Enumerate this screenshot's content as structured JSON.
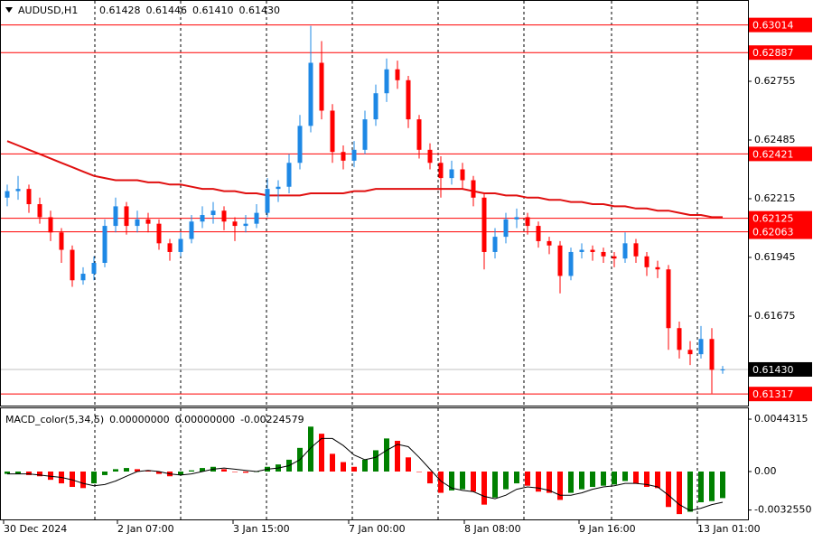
{
  "chart_data": {
    "type": "candlestick",
    "symbol": "AUDUSD,H1",
    "header_values": [
      "0.61428",
      "0.61446",
      "0.61410",
      "0.61430"
    ],
    "up_color": "#1e88e5",
    "down_color": "#ff0000",
    "ylim": [
      0.61272,
      0.63108
    ],
    "yticks": [
      0.62755,
      0.62485,
      0.62215,
      0.61945,
      0.61675
    ],
    "levels": {
      "color": "#ff0000",
      "values": [
        0.63014,
        0.62887,
        0.62421,
        0.62125,
        0.62063,
        0.61317
      ]
    },
    "current_price": {
      "value": 0.6143,
      "label": "0.61430"
    },
    "ohlc": [
      [
        0.6222,
        0.6228,
        0.6218,
        0.6225
      ],
      [
        0.6225,
        0.6232,
        0.6221,
        0.6226
      ],
      [
        0.6226,
        0.6228,
        0.6215,
        0.6219
      ],
      [
        0.6219,
        0.6222,
        0.621,
        0.6213
      ],
      [
        0.6213,
        0.6216,
        0.6202,
        0.6206
      ],
      [
        0.6206,
        0.6208,
        0.6192,
        0.6198
      ],
      [
        0.6198,
        0.62,
        0.6181,
        0.6184
      ],
      [
        0.6184,
        0.619,
        0.6182,
        0.6187
      ],
      [
        0.6187,
        0.6195,
        0.6184,
        0.6192
      ],
      [
        0.6192,
        0.6212,
        0.619,
        0.6209
      ],
      [
        0.6209,
        0.6222,
        0.6206,
        0.6218
      ],
      [
        0.6218,
        0.622,
        0.6205,
        0.6209
      ],
      [
        0.6209,
        0.6216,
        0.6206,
        0.6212
      ],
      [
        0.6212,
        0.6215,
        0.6206,
        0.621
      ],
      [
        0.621,
        0.6212,
        0.6198,
        0.6201
      ],
      [
        0.6201,
        0.6203,
        0.6193,
        0.6197
      ],
      [
        0.6197,
        0.6206,
        0.6195,
        0.6203
      ],
      [
        0.6203,
        0.6214,
        0.6201,
        0.6211
      ],
      [
        0.6211,
        0.6218,
        0.6208,
        0.6214
      ],
      [
        0.6214,
        0.622,
        0.621,
        0.6216
      ],
      [
        0.6216,
        0.6218,
        0.6207,
        0.6211
      ],
      [
        0.6211,
        0.6213,
        0.6202,
        0.6209
      ],
      [
        0.6209,
        0.6214,
        0.6206,
        0.621
      ],
      [
        0.621,
        0.6219,
        0.6208,
        0.6215
      ],
      [
        0.6215,
        0.6231,
        0.6213,
        0.6226
      ],
      [
        0.6226,
        0.623,
        0.622,
        0.6227
      ],
      [
        0.6227,
        0.6242,
        0.6224,
        0.6238
      ],
      [
        0.6238,
        0.626,
        0.6235,
        0.6255
      ],
      [
        0.6255,
        0.6301,
        0.6252,
        0.6284
      ],
      [
        0.6284,
        0.6294,
        0.6258,
        0.6262
      ],
      [
        0.6262,
        0.6265,
        0.6238,
        0.6243
      ],
      [
        0.6243,
        0.6246,
        0.6235,
        0.6239
      ],
      [
        0.6239,
        0.6248,
        0.6236,
        0.6244
      ],
      [
        0.6244,
        0.6262,
        0.6242,
        0.6258
      ],
      [
        0.6258,
        0.6274,
        0.6255,
        0.627
      ],
      [
        0.627,
        0.6286,
        0.6266,
        0.6281
      ],
      [
        0.6281,
        0.6285,
        0.6272,
        0.6276
      ],
      [
        0.6276,
        0.6278,
        0.6254,
        0.6258
      ],
      [
        0.6258,
        0.626,
        0.624,
        0.6244
      ],
      [
        0.6244,
        0.6247,
        0.6235,
        0.6238
      ],
      [
        0.6238,
        0.6241,
        0.6222,
        0.6231
      ],
      [
        0.6231,
        0.6239,
        0.6228,
        0.6235
      ],
      [
        0.6235,
        0.6238,
        0.6226,
        0.623
      ],
      [
        0.623,
        0.6232,
        0.6218,
        0.6222
      ],
      [
        0.6222,
        0.6224,
        0.6189,
        0.6197
      ],
      [
        0.6197,
        0.6208,
        0.6194,
        0.6204
      ],
      [
        0.6204,
        0.6215,
        0.6201,
        0.6212
      ],
      [
        0.6212,
        0.6217,
        0.6208,
        0.6213
      ],
      [
        0.6213,
        0.6215,
        0.6205,
        0.6209
      ],
      [
        0.6209,
        0.6211,
        0.6199,
        0.6202
      ],
      [
        0.6202,
        0.6204,
        0.6196,
        0.62
      ],
      [
        0.62,
        0.6202,
        0.6178,
        0.6186
      ],
      [
        0.6186,
        0.6199,
        0.6184,
        0.6197
      ],
      [
        0.6197,
        0.6201,
        0.6194,
        0.6198
      ],
      [
        0.6198,
        0.62,
        0.6193,
        0.6197
      ],
      [
        0.6197,
        0.6199,
        0.6192,
        0.6195
      ],
      [
        0.6195,
        0.6197,
        0.619,
        0.6194
      ],
      [
        0.6194,
        0.6206,
        0.6192,
        0.6201
      ],
      [
        0.6201,
        0.6203,
        0.6192,
        0.6195
      ],
      [
        0.6195,
        0.6197,
        0.6186,
        0.619
      ],
      [
        0.619,
        0.6193,
        0.6185,
        0.6189
      ],
      [
        0.6189,
        0.6191,
        0.6152,
        0.6162
      ],
      [
        0.6162,
        0.6165,
        0.6148,
        0.6152
      ],
      [
        0.6152,
        0.6156,
        0.6145,
        0.615
      ],
      [
        0.615,
        0.6163,
        0.6148,
        0.6157
      ],
      [
        0.6157,
        0.6162,
        0.6132,
        0.61428
      ],
      [
        0.61428,
        0.61446,
        0.6141,
        0.6143
      ]
    ],
    "ma": {
      "color": "#e01010",
      "values": [
        0.6248,
        0.6246,
        0.6244,
        0.6242,
        0.624,
        0.6238,
        0.6236,
        0.6234,
        0.6232,
        0.6231,
        0.623,
        0.623,
        0.623,
        0.6229,
        0.6229,
        0.6228,
        0.6228,
        0.6227,
        0.6226,
        0.6226,
        0.6225,
        0.6225,
        0.6224,
        0.6224,
        0.6223,
        0.6223,
        0.6223,
        0.6223,
        0.6224,
        0.6224,
        0.6224,
        0.6224,
        0.6225,
        0.6225,
        0.6226,
        0.6226,
        0.6226,
        0.6226,
        0.6226,
        0.6226,
        0.6226,
        0.6226,
        0.6226,
        0.6225,
        0.6224,
        0.6224,
        0.6223,
        0.6223,
        0.6222,
        0.6222,
        0.6221,
        0.6221,
        0.622,
        0.622,
        0.6219,
        0.6219,
        0.6218,
        0.6218,
        0.6217,
        0.6217,
        0.6216,
        0.6216,
        0.6215,
        0.6214,
        0.6214,
        0.6213,
        0.6213
      ]
    },
    "macd": {
      "label": "MACD_color(5,34,5)",
      "header_values": [
        "0.00000000",
        "0.00000000",
        "-0.00224579"
      ],
      "up_color": "#008000",
      "down_color": "#ff0000",
      "signal_color": "#000000",
      "ylim": [
        -0.00405,
        0.00535
      ],
      "yticks": [
        0.0044315,
        {
          "value": 0,
          "label": "0.00"
        },
        {
          "value": -0.003255,
          "label": "-0.0032550"
        }
      ],
      "values": [
        -0.0002,
        -0.0002,
        -0.0003,
        -0.0004,
        -0.0007,
        -0.001,
        -0.0013,
        -0.0014,
        -0.001,
        -0.0003,
        0.0002,
        0.0003,
        0.0002,
        0.0001,
        -0.0002,
        -0.0004,
        -0.0003,
        0.0001,
        0.0003,
        0.0004,
        0.0002,
        0,
        -0.0001,
        0,
        0.0004,
        0.0006,
        0.001,
        0.002,
        0.0038,
        0.0032,
        0.0015,
        0.0008,
        0.0004,
        0.001,
        0.0018,
        0.0028,
        0.0026,
        0.0012,
        0,
        -0.001,
        -0.0018,
        -0.0016,
        -0.0015,
        -0.0017,
        -0.0028,
        -0.0022,
        -0.0015,
        -0.001,
        -0.0012,
        -0.0017,
        -0.0018,
        -0.0024,
        -0.0018,
        -0.0015,
        -0.0013,
        -0.0012,
        -0.0011,
        -0.0008,
        -0.001,
        -0.0013,
        -0.0014,
        -0.003,
        -0.0036,
        -0.0034,
        -0.0026,
        -0.0025,
        -0.00224579
      ],
      "signal": [
        -0.0002,
        -0.0002,
        -0.0002,
        -0.0003,
        -0.0004,
        -0.0005,
        -0.0007,
        -0.001,
        -0.0012,
        -0.0011,
        -0.0008,
        -0.0004,
        0,
        0.0001,
        0,
        -0.0002,
        -0.0003,
        -0.0002,
        0,
        0.0002,
        0.0003,
        0.0002,
        0.0001,
        0,
        0.0002,
        0.0003,
        0.0005,
        0.001,
        0.002,
        0.0028,
        0.0028,
        0.0022,
        0.0014,
        0.001,
        0.0012,
        0.0018,
        0.0023,
        0.0021,
        0.0012,
        0.0002,
        -0.0008,
        -0.0014,
        -0.0016,
        -0.0017,
        -0.0021,
        -0.0023,
        -0.002,
        -0.0015,
        -0.0013,
        -0.0014,
        -0.0016,
        -0.002,
        -0.002,
        -0.0018,
        -0.0015,
        -0.0013,
        -0.0012,
        -0.001,
        -0.001,
        -0.0011,
        -0.0013,
        -0.002,
        -0.0028,
        -0.0033,
        -0.0031,
        -0.0028,
        -0.0026
      ]
    },
    "xlabels": [
      "30 Dec 2024",
      "2 Jan 07:00",
      "3 Jan 15:00",
      "7 Jan 00:00",
      "8 Jan 08:00",
      "9 Jan 16:00",
      "13 Jan 01:00"
    ]
  }
}
